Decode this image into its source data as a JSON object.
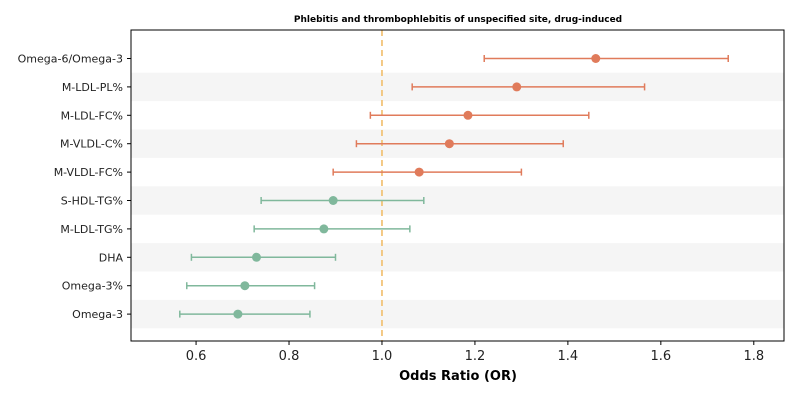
{
  "chart_data": {
    "type": "forest",
    "title": "Phlebitis and thrombophlebitis of unspecified site, drug-induced",
    "xlabel": "Odds Ratio (OR)",
    "xlim": [
      0.46,
      1.865
    ],
    "xticks": [
      "0.6",
      "0.8",
      "1.0",
      "1.2",
      "1.4",
      "1.6",
      "1.8"
    ],
    "reference_line": 1.0,
    "colors": {
      "above": "#e07b5b",
      "below": "#80b89c",
      "reference": "#f2c47a",
      "stripe": "#f5f5f5",
      "axis": "#000000"
    },
    "rows": [
      {
        "label": "Omega-6/Omega-3",
        "or": 1.46,
        "lower": 1.22,
        "upper": 1.745
      },
      {
        "label": "M-LDL-PL%",
        "or": 1.29,
        "lower": 1.065,
        "upper": 1.565
      },
      {
        "label": "M-LDL-FC%",
        "or": 1.185,
        "lower": 0.975,
        "upper": 1.445
      },
      {
        "label": "M-VLDL-C%",
        "or": 1.145,
        "lower": 0.945,
        "upper": 1.39
      },
      {
        "label": "M-VLDL-FC%",
        "or": 1.08,
        "lower": 0.895,
        "upper": 1.3
      },
      {
        "label": "S-HDL-TG%",
        "or": 0.895,
        "lower": 0.74,
        "upper": 1.09
      },
      {
        "label": "M-LDL-TG%",
        "or": 0.875,
        "lower": 0.725,
        "upper": 1.06
      },
      {
        "label": "DHA",
        "or": 0.73,
        "lower": 0.59,
        "upper": 0.9
      },
      {
        "label": "Omega-3%",
        "or": 0.705,
        "lower": 0.58,
        "upper": 0.855
      },
      {
        "label": "Omega-3",
        "or": 0.69,
        "lower": 0.565,
        "upper": 0.845
      }
    ]
  }
}
